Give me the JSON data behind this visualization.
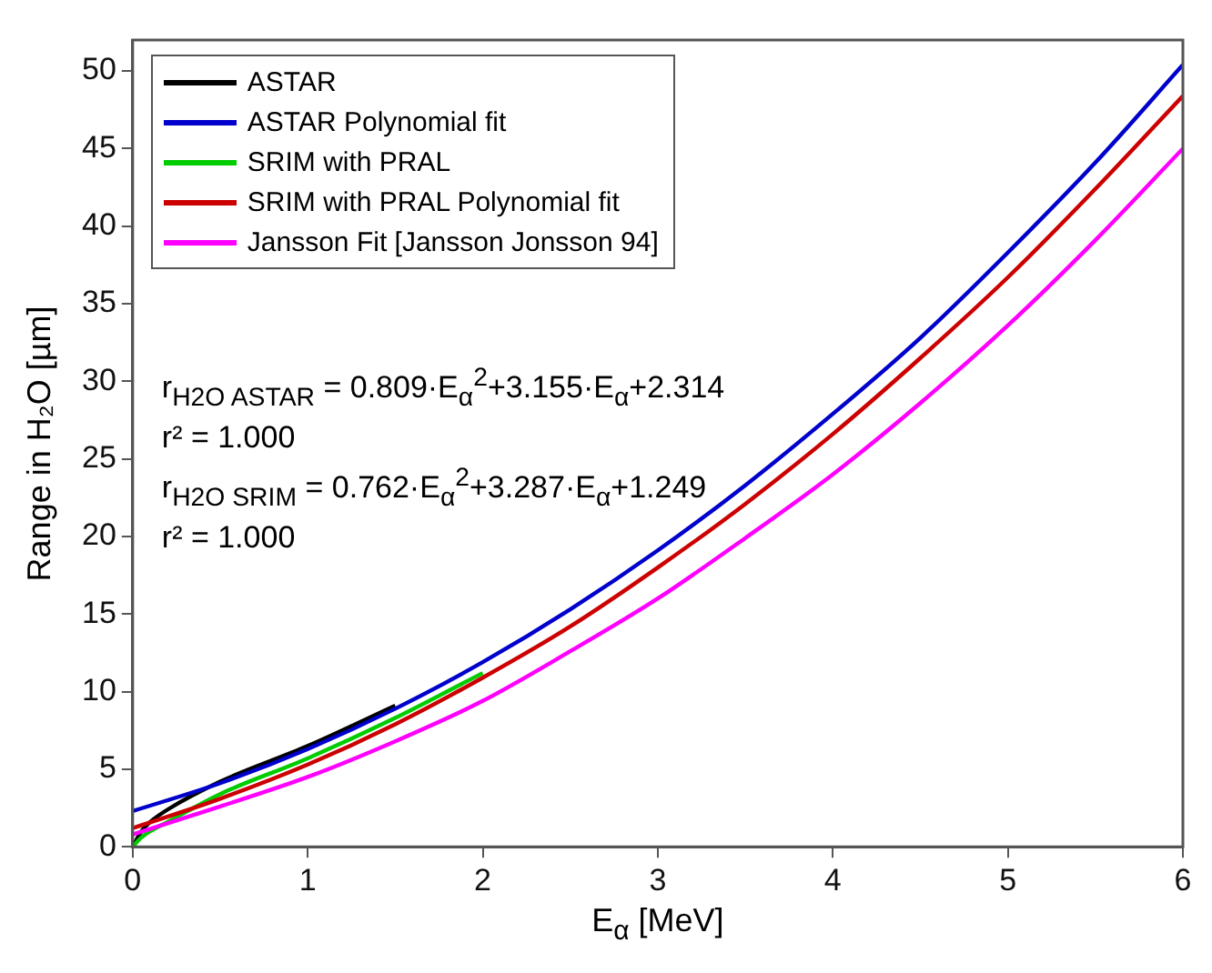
{
  "chart_data": {
    "type": "line",
    "xlabel": "E$_{α}$ [MeV]",
    "ylabel": "Range in H₂O [µm]",
    "xlim": [
      0,
      6
    ],
    "ylim": [
      0,
      52
    ],
    "xticks": [
      0,
      1,
      2,
      3,
      4,
      5,
      6
    ],
    "yticks": [
      0,
      5,
      10,
      15,
      20,
      25,
      30,
      35,
      40,
      45,
      50
    ],
    "grid": false,
    "legend": "top left",
    "marker": "none",
    "line_style": "solid",
    "series": [
      {
        "name": "ASTAR",
        "color": "#000000",
        "x": [
          0,
          0.05,
          0.1,
          0.2,
          0.5,
          1,
          1.5
        ],
        "values": [
          0,
          1.0,
          1.6,
          2.4,
          4.2,
          6.5,
          9.1
        ]
      },
      {
        "name": "ASTAR Polynomial fit",
        "color": "#0000cc",
        "x": [
          0,
          0.5,
          1,
          1.5,
          2,
          2.5,
          3,
          3.5,
          4,
          4.5,
          5,
          5.5,
          6
        ],
        "values": [
          2.3,
          4.1,
          6.3,
          8.9,
          11.9,
          15.3,
          19.1,
          23.3,
          27.9,
          32.8,
          38.3,
          44.1,
          50.4
        ]
      },
      {
        "name": "SRIM with PRAL",
        "color": "#00cc00",
        "x": [
          0,
          0.05,
          0.1,
          0.2,
          0.5,
          1,
          1.5,
          2
        ],
        "values": [
          0,
          0.6,
          1.0,
          1.6,
          3.4,
          5.7,
          8.3,
          11.2
        ]
      },
      {
        "name": "SRIM with PRAL Polynomial fit",
        "color": "#cc0000",
        "x": [
          0,
          0.5,
          1,
          1.5,
          2,
          2.5,
          3,
          3.5,
          4,
          4.5,
          5,
          5.5,
          6
        ],
        "values": [
          1.2,
          3.1,
          5.3,
          7.9,
          10.9,
          14.2,
          18.0,
          22.1,
          26.6,
          31.5,
          36.7,
          42.4,
          48.4
        ]
      },
      {
        "name": "Jansson Fit  [Jansson Jonsson 94]",
        "color": "#ff00ff",
        "x": [
          0,
          0.5,
          1,
          1.5,
          2,
          2.5,
          3,
          3.5,
          4,
          4.5,
          5,
          5.5,
          6
        ],
        "values": [
          0.8,
          2.6,
          4.5,
          6.8,
          9.4,
          12.6,
          16.0,
          19.9,
          24.0,
          28.6,
          33.6,
          39.1,
          45.0
        ]
      }
    ],
    "annotations": [
      "r$_{H2O ASTAR}$ = 0.809·E$_{α}$$^{2}$+3.155·E$_{α}$+2.314",
      "r² = 1.000",
      "r$_{H2O SRIM}$ = 0.762·E$_{α}$$^{2}$+3.287·E$_{α}$+1.249",
      "r² = 1.000"
    ]
  }
}
